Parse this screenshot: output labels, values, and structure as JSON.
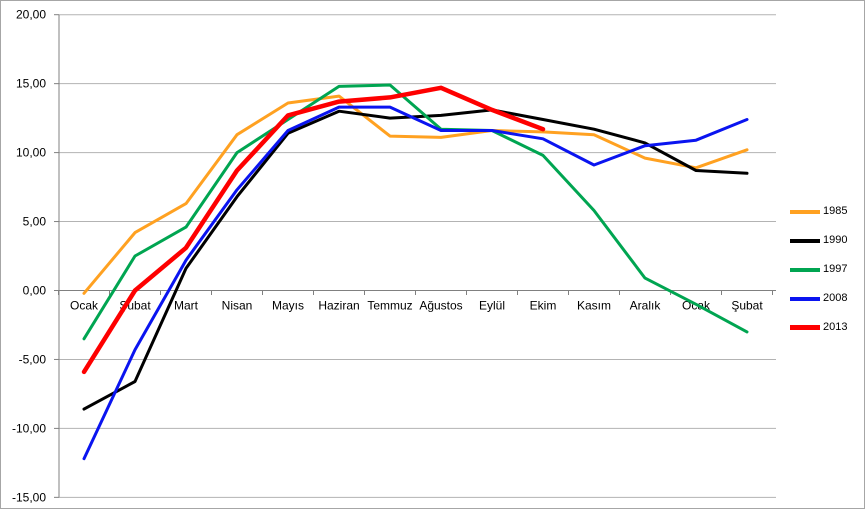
{
  "chart_data": {
    "type": "line",
    "title": "",
    "xlabel": "",
    "ylabel": "",
    "categories": [
      "Ocak",
      "Şubat",
      "Mart",
      "Nisan",
      "Mayıs",
      "Haziran",
      "Temmuz",
      "Ağustos",
      "Eylül",
      "Ekim",
      "Kasım",
      "Aralık",
      "Ocak",
      "Şubat"
    ],
    "series": [
      {
        "name": "1985",
        "color": "#FFA121",
        "width": 3,
        "values": [
          -0.2,
          4.2,
          6.3,
          11.3,
          13.6,
          14.1,
          11.2,
          11.1,
          11.6,
          11.5,
          11.3,
          9.6,
          8.9,
          10.2
        ]
      },
      {
        "name": "1990",
        "color": "#000000",
        "width": 3,
        "values": [
          -8.6,
          -6.6,
          1.6,
          6.8,
          11.4,
          13.0,
          12.5,
          12.7,
          13.1,
          12.4,
          11.7,
          10.7,
          8.7,
          8.5
        ]
      },
      {
        "name": "1997",
        "color": "#00A551",
        "width": 3,
        "values": [
          -3.5,
          2.5,
          4.6,
          10.0,
          12.4,
          14.8,
          14.9,
          11.7,
          11.6,
          9.8,
          5.8,
          0.9,
          -1.0,
          -3.0
        ]
      },
      {
        "name": "2008",
        "color": "#0A14F0",
        "width": 3,
        "values": [
          -12.2,
          -4.3,
          2.2,
          7.3,
          11.6,
          13.3,
          13.3,
          11.6,
          11.6,
          11.0,
          9.1,
          10.5,
          10.9,
          12.4
        ]
      },
      {
        "name": "2013",
        "color": "#FE0000",
        "width": 4.5,
        "values": [
          -5.9,
          0.0,
          3.1,
          8.7,
          12.7,
          13.7,
          14.0,
          14.7,
          13.1,
          11.7
        ]
      }
    ],
    "y_ticks": [
      {
        "label": "20,00",
        "value": 20
      },
      {
        "label": "15,00",
        "value": 15
      },
      {
        "label": "10,00",
        "value": 10
      },
      {
        "label": "5,00",
        "value": 5
      },
      {
        "label": "0,00",
        "value": 0
      },
      {
        "label": "-5,00",
        "value": -5
      },
      {
        "label": "-10,00",
        "value": -10
      },
      {
        "label": "-15,00",
        "value": -15
      }
    ],
    "ylim": [
      -15,
      20
    ],
    "grid": "horizontal",
    "legend_position": "right",
    "colors": {
      "gridline": "#b3b3b3",
      "axis": "#808080",
      "background": "#ffffff"
    }
  }
}
